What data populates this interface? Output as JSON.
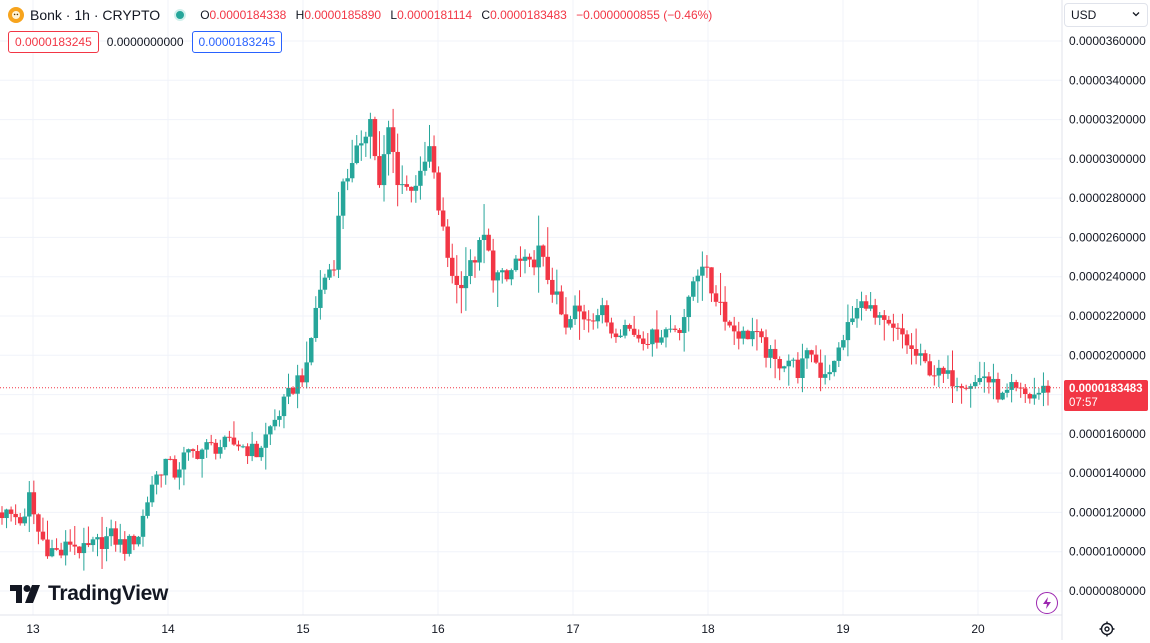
{
  "header": {
    "symbol_title": "Bonk · 1h · CRYPTO",
    "ohlc": {
      "open_key": "O",
      "open": "0.0000184338",
      "high_key": "H",
      "high": "0.0000185890",
      "low_key": "L",
      "low": "0.0000181114",
      "close_key": "C",
      "close": "0.0000183483",
      "change": "−0.0000000855 (−0.46%)"
    },
    "indicator_values": {
      "sell": "0.0000183245",
      "spread": "0.0000000000",
      "buy": "0.0000183245"
    },
    "currency": "USD"
  },
  "price_label": {
    "value": "0.0000183483",
    "countdown": "07:57"
  },
  "branding": {
    "logo_text": "TradingView"
  },
  "colors": {
    "up": "#26a69a",
    "down": "#f23645",
    "grid": "#f0f3fa",
    "text": "#131722",
    "accent_blue": "#2962ff"
  },
  "chart_data": {
    "type": "candlestick",
    "title": "Bonk · 1h · CRYPTO",
    "interval": "1h",
    "y_axis": {
      "position": "right",
      "ticks": [
        "0.0000360000",
        "0.0000340000",
        "0.0000320000",
        "0.0000300000",
        "0.0000280000",
        "0.0000260000",
        "0.0000240000",
        "0.0000220000",
        "0.0000200000",
        "0.0000180000",
        "0.0000160000",
        "0.0000140000",
        "0.0000120000",
        "0.0000100000",
        "0.0000080000"
      ],
      "range": [
        7.6e-06,
        3.67e-05
      ]
    },
    "x_axis": {
      "ticks": [
        "13",
        "14",
        "15",
        "16",
        "17",
        "18",
        "19",
        "20"
      ]
    },
    "grid": true,
    "last_price": 1.83483e-05,
    "keyframes": [
      [
        0,
        12.0
      ],
      [
        3,
        11.8
      ],
      [
        5,
        11.5
      ],
      [
        6,
        12.8
      ],
      [
        8,
        11.0
      ],
      [
        10,
        10.2
      ],
      [
        13,
        9.9
      ],
      [
        15,
        10.5
      ],
      [
        18,
        10.0
      ],
      [
        20,
        10.3
      ],
      [
        24,
        10.8
      ],
      [
        27,
        10.2
      ],
      [
        30,
        10.9
      ],
      [
        33,
        13.5
      ],
      [
        36,
        14.6
      ],
      [
        38,
        14.0
      ],
      [
        40,
        14.8
      ],
      [
        45,
        15.3
      ],
      [
        52,
        15.5
      ],
      [
        56,
        15.0
      ],
      [
        59,
        16.3
      ],
      [
        62,
        17.5
      ],
      [
        65,
        18.8
      ],
      [
        67,
        19.2
      ],
      [
        69,
        22.5
      ],
      [
        71,
        24.0
      ],
      [
        73,
        24.8
      ],
      [
        75,
        29.0
      ],
      [
        77,
        29.5
      ],
      [
        79,
        31.0
      ],
      [
        81,
        32.0
      ],
      [
        83,
        28.5
      ],
      [
        85,
        31.5
      ],
      [
        87,
        29.0
      ],
      [
        89,
        28.5
      ],
      [
        92,
        29.0
      ],
      [
        94,
        30.5
      ],
      [
        96,
        27.5
      ],
      [
        98,
        25.0
      ],
      [
        100,
        23.5
      ],
      [
        103,
        24.5
      ],
      [
        106,
        26.0
      ],
      [
        108,
        24.2
      ],
      [
        111,
        23.8
      ],
      [
        113,
        24.8
      ],
      [
        116,
        24.5
      ],
      [
        118,
        25.3
      ],
      [
        120,
        24.0
      ],
      [
        122,
        22.8
      ],
      [
        124,
        21.2
      ],
      [
        126,
        22.3
      ],
      [
        128,
        22.0
      ],
      [
        132,
        22.2
      ],
      [
        134,
        21.3
      ],
      [
        137,
        21.5
      ],
      [
        140,
        21.0
      ],
      [
        143,
        20.9
      ],
      [
        146,
        21.3
      ],
      [
        149,
        21.5
      ],
      [
        151,
        22.6
      ],
      [
        152,
        23.8
      ],
      [
        154,
        24.8
      ],
      [
        156,
        23.3
      ],
      [
        158,
        22.7
      ],
      [
        160,
        21.5
      ],
      [
        163,
        21.0
      ],
      [
        165,
        21.2
      ],
      [
        168,
        20.2
      ],
      [
        170,
        19.6
      ],
      [
        173,
        19.8
      ],
      [
        175,
        19.2
      ],
      [
        178,
        20.2
      ],
      [
        180,
        19.1
      ],
      [
        183,
        19.5
      ],
      [
        185,
        21.0
      ],
      [
        188,
        22.3
      ],
      [
        190,
        22.8
      ],
      [
        192,
        21.8
      ],
      [
        196,
        21.2
      ],
      [
        198,
        21.0
      ],
      [
        200,
        20.2
      ],
      [
        203,
        19.5
      ],
      [
        206,
        19.0
      ],
      [
        209,
        18.8
      ],
      [
        212,
        18.7
      ],
      [
        214,
        18.6
      ],
      [
        216,
        19.0
      ],
      [
        218,
        18.4
      ],
      [
        220,
        17.8
      ],
      [
        222,
        18.2
      ],
      [
        224,
        18.0
      ],
      [
        226,
        17.9
      ],
      [
        228,
        18.1
      ],
      [
        230,
        18.35
      ]
    ]
  }
}
